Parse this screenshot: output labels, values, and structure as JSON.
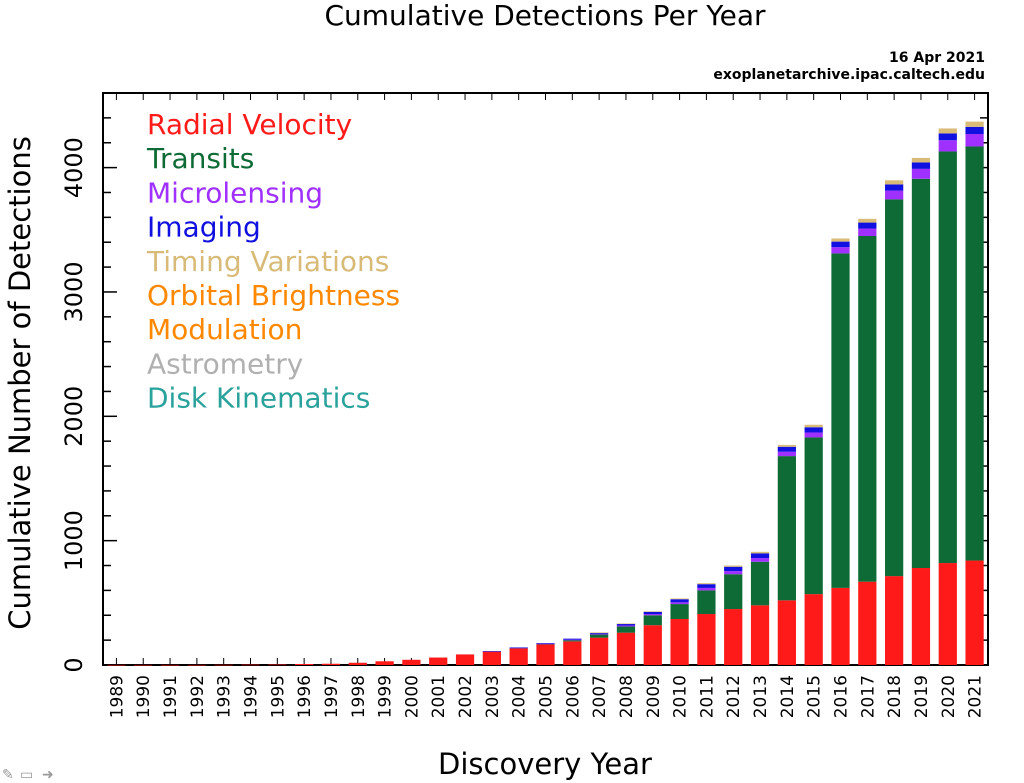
{
  "chart_data": {
    "type": "bar",
    "stacked": true,
    "title": "Cumulative Detections Per Year",
    "xlabel": "Discovery Year",
    "ylabel": "Cumulative Number of Detections",
    "date": "16 Apr 2021",
    "source": "exoplanetarchive.ipac.caltech.edu",
    "ylim": [
      0,
      4600
    ],
    "yticks": [
      0,
      1000,
      2000,
      3000,
      4000
    ],
    "categories": [
      "1989",
      "1990",
      "1991",
      "1992",
      "1993",
      "1994",
      "1995",
      "1996",
      "1997",
      "1998",
      "1999",
      "2000",
      "2001",
      "2002",
      "2003",
      "2004",
      "2005",
      "2006",
      "2007",
      "2008",
      "2009",
      "2010",
      "2011",
      "2012",
      "2013",
      "2014",
      "2015",
      "2016",
      "2017",
      "2018",
      "2019",
      "2020",
      "2021"
    ],
    "legend_placement": "top-left",
    "series": [
      {
        "name": "Radial Velocity",
        "color": "#ff1a1a",
        "values": [
          1,
          1,
          1,
          1,
          2,
          3,
          4,
          8,
          10,
          18,
          30,
          42,
          60,
          85,
          110,
          135,
          165,
          190,
          220,
          260,
          320,
          370,
          410,
          450,
          480,
          520,
          570,
          620,
          670,
          715,
          780,
          820,
          840
        ]
      },
      {
        "name": "Transits",
        "color": "#0e6b35",
        "values": [
          0,
          0,
          0,
          0,
          0,
          0,
          0,
          0,
          0,
          0,
          0,
          0,
          0,
          0,
          0,
          3,
          5,
          10,
          25,
          50,
          80,
          120,
          190,
          280,
          350,
          1160,
          1260,
          2690,
          2780,
          3030,
          3130,
          3310,
          3330
        ]
      },
      {
        "name": "Microlensing",
        "color": "#a030ff",
        "values": [
          0,
          0,
          0,
          0,
          0,
          0,
          0,
          0,
          0,
          0,
          0,
          0,
          0,
          0,
          0,
          1,
          2,
          4,
          6,
          8,
          10,
          14,
          20,
          25,
          30,
          35,
          40,
          50,
          60,
          70,
          80,
          90,
          100
        ]
      },
      {
        "name": "Imaging",
        "color": "#1010e0",
        "values": [
          0,
          0,
          0,
          0,
          0,
          0,
          0,
          0,
          0,
          0,
          0,
          0,
          0,
          0,
          1,
          2,
          4,
          8,
          10,
          14,
          18,
          25,
          30,
          35,
          38,
          40,
          42,
          45,
          48,
          50,
          52,
          55,
          58
        ]
      },
      {
        "name": "Timing Variations",
        "color": "#d8bb78",
        "values": [
          0,
          0,
          0,
          0,
          0,
          0,
          0,
          0,
          0,
          0,
          0,
          0,
          0,
          0,
          0,
          0,
          0,
          0,
          1,
          2,
          4,
          6,
          8,
          10,
          12,
          15,
          20,
          25,
          30,
          33,
          36,
          40,
          42
        ]
      },
      {
        "name": "Orbital Brightness",
        "color": "#ff8800",
        "values": [
          0,
          0,
          0,
          0,
          0,
          0,
          0,
          0,
          0,
          0,
          0,
          0,
          0,
          0,
          0,
          0,
          0,
          0,
          0,
          0,
          0,
          0,
          0,
          0,
          0,
          0,
          0,
          0,
          0,
          0,
          0,
          0,
          0
        ]
      },
      {
        "name": "Modulation",
        "color": "#ff8800",
        "values": [
          0,
          0,
          0,
          0,
          0,
          0,
          0,
          0,
          0,
          0,
          0,
          0,
          0,
          0,
          0,
          0,
          0,
          0,
          0,
          0,
          0,
          0,
          0,
          0,
          0,
          0,
          0,
          0,
          0,
          0,
          0,
          0,
          0
        ]
      },
      {
        "name": "Astrometry",
        "color": "#b0b0b0",
        "values": [
          0,
          0,
          0,
          0,
          0,
          0,
          0,
          0,
          0,
          0,
          0,
          0,
          0,
          0,
          0,
          0,
          0,
          0,
          0,
          0,
          0,
          0,
          0,
          0,
          0,
          0,
          0,
          0,
          0,
          0,
          0,
          0,
          0
        ]
      },
      {
        "name": "Disk Kinematics",
        "color": "#2aa29c",
        "values": [
          0,
          0,
          0,
          0,
          0,
          0,
          0,
          0,
          0,
          0,
          0,
          0,
          0,
          0,
          0,
          0,
          0,
          0,
          0,
          0,
          0,
          0,
          0,
          0,
          0,
          0,
          0,
          0,
          0,
          0,
          0,
          0,
          0
        ]
      }
    ]
  }
}
